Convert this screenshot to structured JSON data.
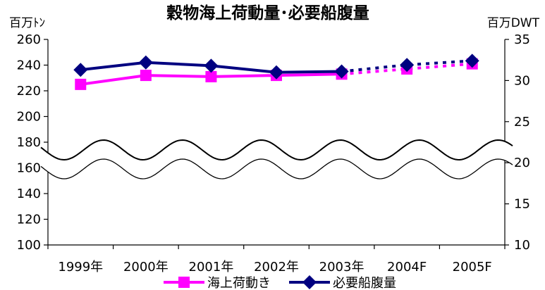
{
  "chart_data": {
    "type": "line",
    "title": "穀物海上荷動量･必要船腹量",
    "categories": [
      "1999年",
      "2000年",
      "2001年",
      "2002年",
      "2003年",
      "2004F",
      "2005F"
    ],
    "y_left": {
      "label": "百万ﾄﾝ",
      "ylim": [
        100,
        260
      ],
      "ticks": [
        "100",
        "120",
        "140",
        "160",
        "180",
        "200",
        "220",
        "240",
        "260"
      ],
      "axis_break": true
    },
    "y_right": {
      "label": "百万DWT",
      "ylim": [
        10,
        35
      ],
      "ticks": [
        "10",
        "15",
        "20",
        "25",
        "30",
        "35"
      ]
    },
    "series": [
      {
        "name": "海上荷動き",
        "axis": "left",
        "color": "#ff00ff",
        "marker": "square",
        "values": [
          225,
          232,
          231,
          232,
          233,
          237,
          241
        ],
        "forecast_from_index": 4
      },
      {
        "name": "必要船腹量",
        "axis": "right",
        "color": "#000080",
        "marker": "diamond",
        "values": [
          31.3,
          32.2,
          31.8,
          31.0,
          31.1,
          31.9,
          32.4
        ],
        "forecast_from_index": 4
      }
    ],
    "legend_position": "bottom",
    "grid": false
  }
}
